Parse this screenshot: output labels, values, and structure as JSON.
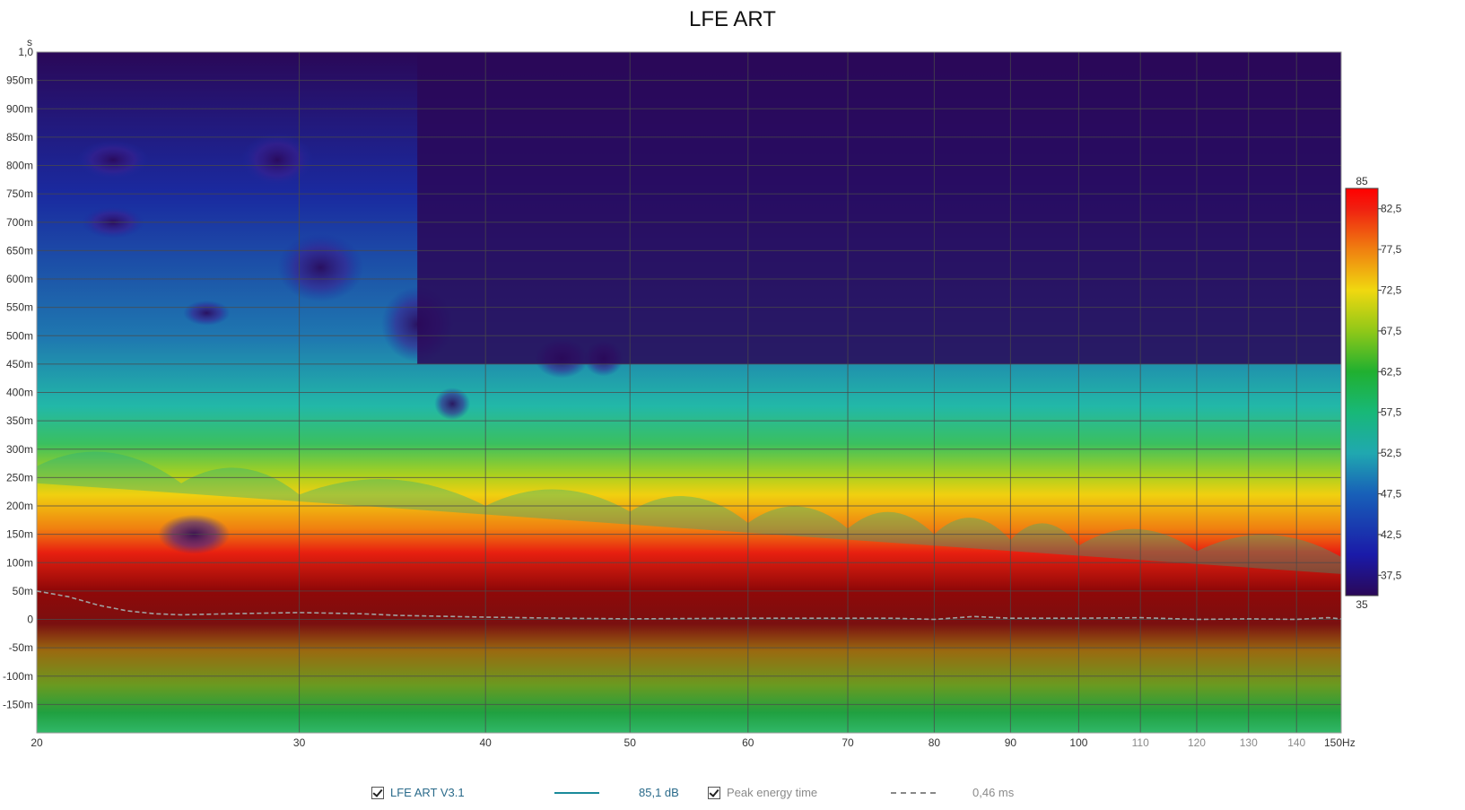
{
  "chart_data": {
    "type": "heatmap",
    "title": "LFE ART",
    "x_unit": "Hz",
    "y_unit": "s",
    "x_scale": "log",
    "xlim": [
      20,
      150
    ],
    "ylim": [
      -0.2,
      1.0
    ],
    "x_ticks": [
      {
        "value": 20,
        "label": "20"
      },
      {
        "value": 30,
        "label": "30"
      },
      {
        "value": 40,
        "label": "40"
      },
      {
        "value": 50,
        "label": "50"
      },
      {
        "value": 60,
        "label": "60"
      },
      {
        "value": 70,
        "label": "70"
      },
      {
        "value": 80,
        "label": "80"
      },
      {
        "value": 90,
        "label": "90"
      },
      {
        "value": 100,
        "label": "100"
      },
      {
        "value": 110,
        "label": "110"
      },
      {
        "value": 120,
        "label": "120"
      },
      {
        "value": 130,
        "label": "130"
      },
      {
        "value": 140,
        "label": "140"
      },
      {
        "value": 150,
        "label": "150Hz"
      }
    ],
    "y_ticks": [
      {
        "value": 1.0,
        "label": "1,0"
      },
      {
        "value": 0.95,
        "label": "950m"
      },
      {
        "value": 0.9,
        "label": "900m"
      },
      {
        "value": 0.85,
        "label": "850m"
      },
      {
        "value": 0.8,
        "label": "800m"
      },
      {
        "value": 0.75,
        "label": "750m"
      },
      {
        "value": 0.7,
        "label": "700m"
      },
      {
        "value": 0.65,
        "label": "650m"
      },
      {
        "value": 0.6,
        "label": "600m"
      },
      {
        "value": 0.55,
        "label": "550m"
      },
      {
        "value": 0.5,
        "label": "500m"
      },
      {
        "value": 0.45,
        "label": "450m"
      },
      {
        "value": 0.4,
        "label": "400m"
      },
      {
        "value": 0.35,
        "label": "350m"
      },
      {
        "value": 0.3,
        "label": "300m"
      },
      {
        "value": 0.25,
        "label": "250m"
      },
      {
        "value": 0.2,
        "label": "200m"
      },
      {
        "value": 0.15,
        "label": "150m"
      },
      {
        "value": 0.1,
        "label": "100m"
      },
      {
        "value": 0.05,
        "label": "50m"
      },
      {
        "value": 0.0,
        "label": "0"
      },
      {
        "value": -0.05,
        "label": "-50m"
      },
      {
        "value": -0.1,
        "label": "-100m"
      },
      {
        "value": -0.15,
        "label": "-150m"
      }
    ],
    "colorbar": {
      "min": 35,
      "max": 85,
      "min_label": "35",
      "max_label": "85",
      "ticks": [
        {
          "value": 82.5,
          "label": "82,5"
        },
        {
          "value": 77.5,
          "label": "77,5"
        },
        {
          "value": 72.5,
          "label": "72,5"
        },
        {
          "value": 67.5,
          "label": "67,5"
        },
        {
          "value": 62.5,
          "label": "62,5"
        },
        {
          "value": 57.5,
          "label": "57,5"
        },
        {
          "value": 52.5,
          "label": "52,5"
        },
        {
          "value": 47.5,
          "label": "47,5"
        },
        {
          "value": 42.5,
          "label": "42,5"
        },
        {
          "value": 37.5,
          "label": "37,5"
        }
      ]
    },
    "decay_front_s": [
      [
        20,
        0.27
      ],
      [
        25,
        0.24
      ],
      [
        30,
        0.22
      ],
      [
        40,
        0.2
      ],
      [
        50,
        0.19
      ],
      [
        60,
        0.17
      ],
      [
        70,
        0.16
      ],
      [
        80,
        0.15
      ],
      [
        90,
        0.14
      ],
      [
        100,
        0.13
      ],
      [
        120,
        0.12
      ],
      [
        150,
        0.11
      ]
    ],
    "peak_energy_time_s": [
      [
        20,
        0.05
      ],
      [
        21,
        0.04
      ],
      [
        22,
        0.025
      ],
      [
        23,
        0.015
      ],
      [
        24,
        0.01
      ],
      [
        25,
        0.008
      ],
      [
        27,
        0.01
      ],
      [
        30,
        0.012
      ],
      [
        33,
        0.01
      ],
      [
        35,
        0.007
      ],
      [
        40,
        0.004
      ],
      [
        45,
        0.002
      ],
      [
        50,
        0.001
      ],
      [
        60,
        0.002
      ],
      [
        70,
        0.002
      ],
      [
        75,
        0.002
      ],
      [
        80,
        0.0
      ],
      [
        85,
        0.005
      ],
      [
        90,
        0.002
      ],
      [
        100,
        0.002
      ],
      [
        110,
        0.003
      ],
      [
        120,
        0.0
      ],
      [
        130,
        0.001
      ],
      [
        140,
        0.0
      ],
      [
        147,
        0.003
      ],
      [
        150,
        0.001
      ]
    ],
    "legend": [
      {
        "label": "LFE ART V3.1",
        "value": "85,1 dB",
        "checked": true,
        "style": "solid",
        "color": "#1a8a9a"
      },
      {
        "label": "Peak energy time",
        "value": "0,46 ms",
        "checked": true,
        "style": "dashed",
        "color": "#888888"
      }
    ]
  }
}
